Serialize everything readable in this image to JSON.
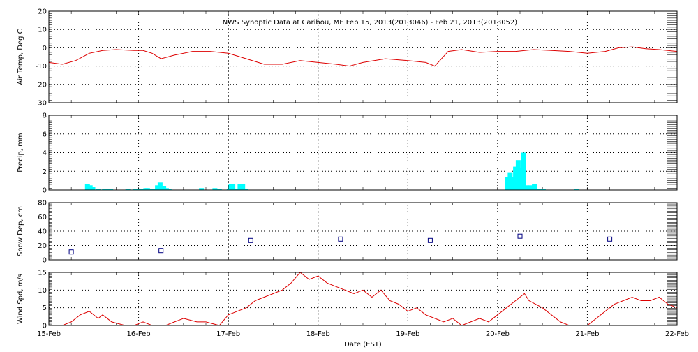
{
  "title": "NWS Synoptic Data at Caribou, ME   Feb 15, 2013(2013046) - Feb 21, 2013(2013052)",
  "xlabel": "Date (EST)",
  "x_ticks": [
    "15-Feb",
    "16-Feb",
    "17-Feb",
    "18-Feb",
    "19-Feb",
    "20-Feb",
    "21-Feb",
    "22-Feb"
  ],
  "colors": {
    "temp_line": "#dd0000",
    "precip_bar": "#00ffff",
    "snow_marker": "#000080",
    "wind_line": "#dd0000",
    "axis": "#000000",
    "grid": "#000000"
  },
  "chart_data": [
    {
      "type": "line",
      "ylabel": "Air Temp, Deg C",
      "ylim": [
        -30,
        20
      ],
      "yticks": [
        "20",
        "10",
        "0",
        "-10",
        "-20",
        "-30"
      ],
      "grid": true,
      "series": [
        {
          "x_days": [
            0,
            0.15,
            0.3,
            0.45,
            0.6,
            0.75,
            0.95,
            1.05,
            1.15,
            1.25,
            1.4,
            1.6,
            1.8,
            2.0,
            2.2,
            2.4,
            2.6,
            2.8,
            3.0,
            3.2,
            3.35,
            3.5,
            3.75,
            4.0,
            4.2,
            4.3,
            4.45,
            4.6,
            4.8,
            5.0,
            5.2,
            5.4,
            5.6,
            5.8,
            6.0,
            6.2,
            6.35,
            6.5,
            6.65,
            6.8,
            7.0
          ],
          "values": [
            -8,
            -9,
            -7,
            -3,
            -1.5,
            -1,
            -1.5,
            -1.5,
            -3,
            -6,
            -4,
            -2,
            -2,
            -3,
            -6,
            -9,
            -9,
            -7,
            -8,
            -9,
            -10,
            -8,
            -6,
            -7,
            -8,
            -10,
            -2,
            -1,
            -2.5,
            -2,
            -2,
            -1,
            -1.5,
            -2,
            -3,
            -2,
            0,
            0.5,
            -0.5,
            -1,
            -2
          ]
        }
      ]
    },
    {
      "type": "bar",
      "ylabel": "Precip, mm",
      "ylim": [
        0,
        8
      ],
      "yticks": [
        "8",
        "6",
        "4",
        "2",
        "0"
      ],
      "grid": true,
      "series": [
        {
          "x_days": [
            0.43,
            0.46,
            0.49,
            0.55,
            0.62,
            0.63,
            0.66,
            0.69,
            0.88,
            0.96,
            0.99,
            1.04,
            1.08,
            1.1,
            1.12,
            1.14,
            1.17,
            1.21,
            1.24,
            1.28,
            1.31,
            1.34,
            1.7,
            1.85,
            1.9,
            2.01,
            2.03,
            2.05,
            2.08,
            2.1,
            2.13,
            2.16,
            2.19,
            5.11,
            5.14,
            5.17,
            5.2,
            5.23,
            5.26,
            5.29,
            5.32,
            5.37,
            5.41,
            5.44,
            5.48,
            5.51,
            5.88
          ],
          "values": [
            0.6,
            0.5,
            0.3,
            0.1,
            0.1,
            0.1,
            0.1,
            0.1,
            0.1,
            0.1,
            0.1,
            0.1,
            0.2,
            0.2,
            0.1,
            0.1,
            0.1,
            0.5,
            0.8,
            0.4,
            0.2,
            0.1,
            0.2,
            0.2,
            0.1,
            0.1,
            0.6,
            0.6,
            0.1,
            0.1,
            0.6,
            0.6,
            0.1,
            1.4,
            1.9,
            1.4,
            2.5,
            3.2,
            2.4,
            4.0,
            0.5,
            0.5,
            0.6,
            0.1,
            0.1,
            0.1,
            0.1
          ]
        }
      ]
    },
    {
      "type": "scatter",
      "ylabel": "Snow Dep, cm",
      "ylim": [
        0,
        80
      ],
      "yticks": [
        "80",
        "60",
        "40",
        "20",
        "0"
      ],
      "grid": true,
      "series": [
        {
          "x_days": [
            0.25,
            1.25,
            2.25,
            3.25,
            4.25,
            5.25,
            6.25
          ],
          "values": [
            11,
            13,
            27,
            29,
            27,
            33,
            29
          ]
        }
      ]
    },
    {
      "type": "line",
      "ylabel": "Wind Spd, m/s",
      "ylim": [
        0,
        15
      ],
      "yticks": [
        "15",
        "10",
        "5",
        "0"
      ],
      "grid": true,
      "series": [
        {
          "x_days": [
            0,
            0.15,
            0.25,
            0.35,
            0.45,
            0.55,
            0.6,
            0.7,
            0.85,
            0.95,
            1.05,
            1.15,
            1.3,
            1.4,
            1.5,
            1.65,
            1.75,
            1.9,
            2.0,
            2.1,
            2.2,
            2.3,
            2.5,
            2.6,
            2.7,
            2.8,
            2.9,
            3.0,
            3.1,
            3.2,
            3.3,
            3.4,
            3.5,
            3.6,
            3.7,
            3.8,
            3.9,
            4.0,
            4.1,
            4.2,
            4.3,
            4.4,
            4.5,
            4.6,
            4.7,
            4.8,
            4.9,
            5.0,
            5.1,
            5.2,
            5.3,
            5.35,
            5.5,
            5.6,
            5.7,
            5.8,
            5.9,
            6.0,
            6.1,
            6.2,
            6.3,
            6.4,
            6.5,
            6.6,
            6.7,
            6.8,
            6.9,
            7.0
          ],
          "values": [
            0,
            0,
            1,
            3,
            4,
            2,
            3,
            1,
            0,
            0,
            1,
            0,
            0,
            1,
            2,
            1,
            1,
            0,
            3,
            4,
            5,
            7,
            9,
            10,
            12,
            15,
            13,
            14,
            12,
            11,
            10,
            9,
            10,
            8,
            10,
            7,
            6,
            4,
            5,
            3,
            2,
            1,
            2,
            0,
            1,
            2,
            1,
            3,
            5,
            7,
            9,
            7,
            5,
            3,
            1,
            0,
            0,
            0,
            2,
            4,
            6,
            7,
            8,
            7,
            7,
            8,
            6,
            5
          ]
        }
      ]
    }
  ]
}
